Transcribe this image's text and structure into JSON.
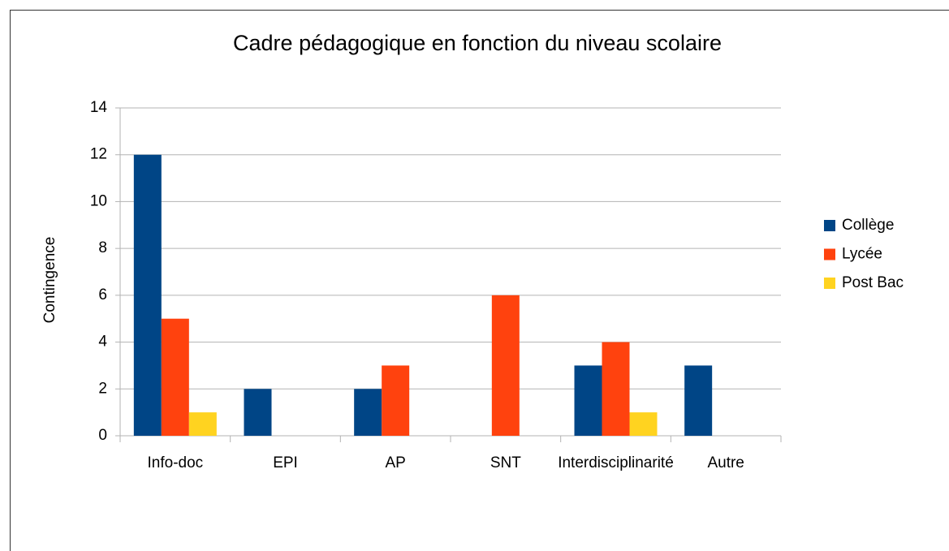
{
  "chart_data": {
    "type": "bar",
    "title": "Cadre pédagogique en fonction du niveau scolaire",
    "y_label": "Contingence",
    "categories": [
      "Info-doc",
      "EPI",
      "AP",
      "SNT",
      "Interdisciplinarité",
      "Autre"
    ],
    "series": [
      {
        "name": "Collège",
        "color": "#004586",
        "values": [
          12,
          2,
          2,
          0,
          3,
          3
        ]
      },
      {
        "name": "Lycée",
        "color": "#ff420e",
        "values": [
          5,
          0,
          3,
          6,
          4,
          0
        ]
      },
      {
        "name": "Post Bac",
        "color": "#ffd320",
        "values": [
          1,
          0,
          0,
          0,
          1,
          0
        ]
      }
    ],
    "ylim": [
      0,
      14
    ],
    "yticks": [
      0,
      2,
      4,
      6,
      8,
      10,
      12,
      14
    ],
    "grid": true,
    "legend": "right"
  }
}
